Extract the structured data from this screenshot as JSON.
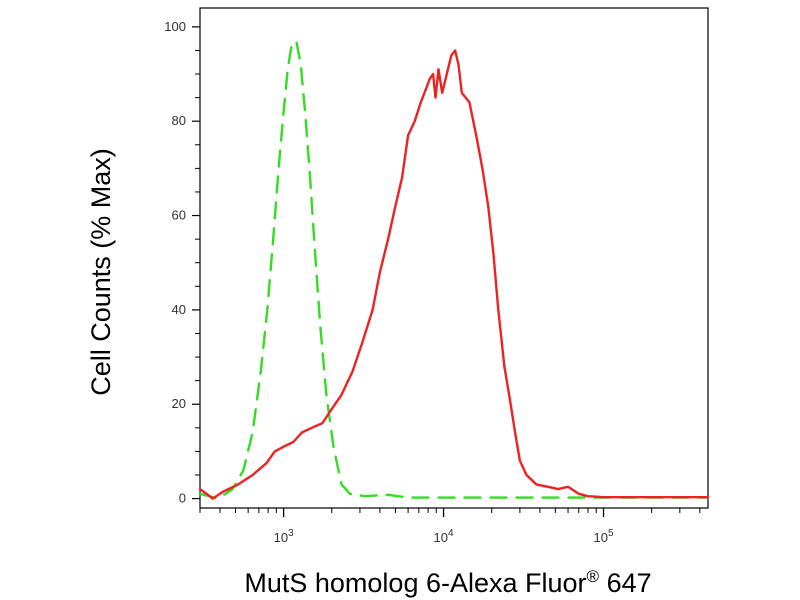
{
  "chart_data": {
    "type": "line",
    "title": "",
    "xlabel": "MutS homolog 6-Alexa Fluor",
    "xlabel_sup": "®",
    "xlabel_suffix": " 647",
    "ylabel": "Cell Counts (% Max)",
    "xscale": "log",
    "xlim": [
      300,
      450000
    ],
    "ylim": [
      -2,
      104
    ],
    "y_ticks": [
      0,
      20,
      40,
      60,
      80,
      100
    ],
    "y_tick_labels": [
      "0",
      "20",
      "40",
      "60",
      "80",
      "100"
    ],
    "x_ticks": [
      1000,
      10000,
      100000
    ],
    "x_tick_labels": [
      {
        "base": "10",
        "exp": "3"
      },
      {
        "base": "10",
        "exp": "4"
      },
      {
        "base": "10",
        "exp": "5"
      }
    ],
    "grid": false,
    "legend": "none",
    "series": [
      {
        "style": "dashed",
        "color": "#33dd22",
        "points": [
          [
            300,
            1
          ],
          [
            390,
            0
          ],
          [
            480,
            2
          ],
          [
            560,
            6
          ],
          [
            640,
            14
          ],
          [
            720,
            27
          ],
          [
            790,
            40
          ],
          [
            860,
            55
          ],
          [
            930,
            70
          ],
          [
            1000,
            82
          ],
          [
            1060,
            91
          ],
          [
            1120,
            96
          ],
          [
            1200,
            97
          ],
          [
            1280,
            92
          ],
          [
            1370,
            81
          ],
          [
            1470,
            67
          ],
          [
            1580,
            51
          ],
          [
            1700,
            36
          ],
          [
            1850,
            22
          ],
          [
            2050,
            11
          ],
          [
            2300,
            3
          ],
          [
            2600,
            1
          ],
          [
            3200,
            0.5
          ],
          [
            4500,
            0.8
          ],
          [
            6000,
            0.2
          ],
          [
            20000,
            0.2
          ],
          [
            100000,
            0.2
          ],
          [
            450000,
            0.2
          ]
        ]
      },
      {
        "style": "solid",
        "color": "#ee2222",
        "points": [
          [
            300,
            2
          ],
          [
            330,
            1
          ],
          [
            360,
            0
          ],
          [
            420,
            1.5
          ],
          [
            520,
            3
          ],
          [
            640,
            5
          ],
          [
            780,
            7.5
          ],
          [
            880,
            10
          ],
          [
            1000,
            11
          ],
          [
            1150,
            12
          ],
          [
            1300,
            14
          ],
          [
            1500,
            15
          ],
          [
            1750,
            16
          ],
          [
            2000,
            19
          ],
          [
            2300,
            22
          ],
          [
            2700,
            27
          ],
          [
            3100,
            33
          ],
          [
            3600,
            40
          ],
          [
            4000,
            48
          ],
          [
            4500,
            55
          ],
          [
            5000,
            62
          ],
          [
            5500,
            68
          ],
          [
            6000,
            77
          ],
          [
            6600,
            80
          ],
          [
            7200,
            84
          ],
          [
            7800,
            87
          ],
          [
            8200,
            89
          ],
          [
            8600,
            90
          ],
          [
            8900,
            85
          ],
          [
            9300,
            91
          ],
          [
            9800,
            86
          ],
          [
            10300,
            89
          ],
          [
            11200,
            94
          ],
          [
            11800,
            95
          ],
          [
            12400,
            92
          ],
          [
            13000,
            86
          ],
          [
            14500,
            84
          ],
          [
            16000,
            77
          ],
          [
            17500,
            70
          ],
          [
            19000,
            62
          ],
          [
            20500,
            52
          ],
          [
            22000,
            40
          ],
          [
            24000,
            28
          ],
          [
            26000,
            21
          ],
          [
            28000,
            14
          ],
          [
            30000,
            8
          ],
          [
            33000,
            5
          ],
          [
            38000,
            3
          ],
          [
            45000,
            2.5
          ],
          [
            52000,
            2
          ],
          [
            60000,
            2.5
          ],
          [
            70000,
            1
          ],
          [
            80000,
            0.5
          ],
          [
            100000,
            0.3
          ],
          [
            200000,
            0.3
          ],
          [
            450000,
            0.3
          ]
        ]
      }
    ]
  }
}
